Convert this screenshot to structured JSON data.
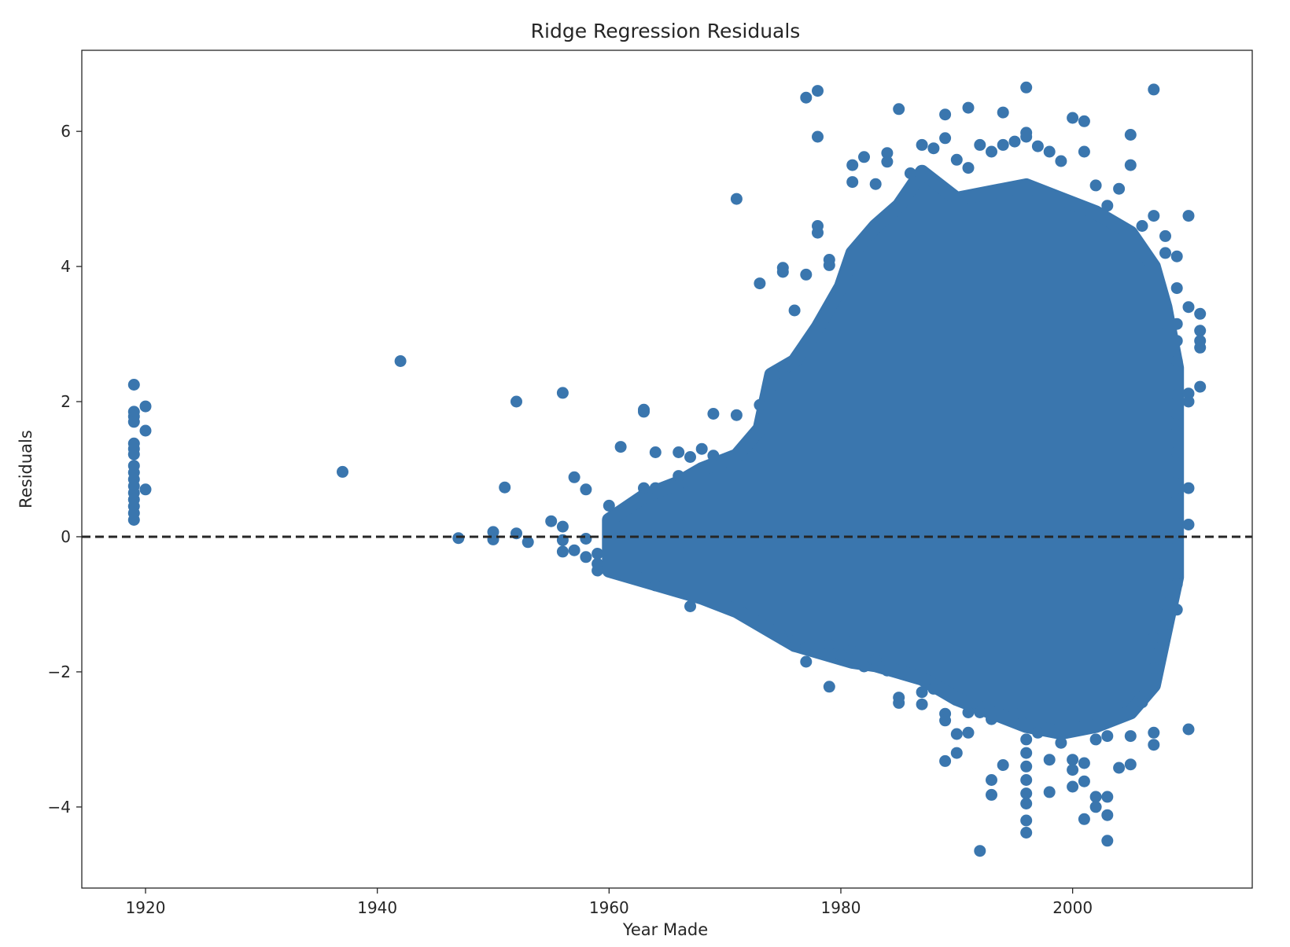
{
  "chart_data": {
    "type": "scatter",
    "title": "Ridge Regression Residuals",
    "xlabel": "Year Made",
    "ylabel": "Residuals",
    "xlim": [
      1914.5,
      2015.5
    ],
    "ylim": [
      -5.2,
      7.2
    ],
    "x_ticks": [
      1920,
      1940,
      1960,
      1980,
      2000
    ],
    "y_ticks": [
      -4,
      -2,
      0,
      2,
      4,
      6
    ],
    "grid": false,
    "legend": "none",
    "marker_color": "#3a76ae",
    "reference_line": {
      "y": 0,
      "style": "dashed",
      "color": "#262626"
    },
    "dense_envelope": [
      {
        "x": 1960,
        "top": 0.25,
        "bottom": -0.5
      },
      {
        "x": 1963,
        "top": 0.6,
        "bottom": -0.65
      },
      {
        "x": 1966,
        "top": 0.8,
        "bottom": -0.8
      },
      {
        "x": 1968,
        "top": 1.0,
        "bottom": -0.9
      },
      {
        "x": 1971,
        "top": 1.2,
        "bottom": -1.1
      },
      {
        "x": 1973,
        "top": 1.6,
        "bottom": -1.3
      },
      {
        "x": 1974,
        "top": 2.4,
        "bottom": -1.4
      },
      {
        "x": 1976,
        "top": 2.6,
        "bottom": -1.6
      },
      {
        "x": 1978,
        "top": 3.1,
        "bottom": -1.7
      },
      {
        "x": 1980,
        "top": 3.7,
        "bottom": -1.8
      },
      {
        "x": 1981,
        "top": 4.2,
        "bottom": -1.85
      },
      {
        "x": 1983,
        "top": 4.6,
        "bottom": -1.9
      },
      {
        "x": 1985,
        "top": 4.9,
        "bottom": -2.0
      },
      {
        "x": 1987,
        "top": 5.4,
        "bottom": -2.1
      },
      {
        "x": 1990,
        "top": 5.0,
        "bottom": -2.4
      },
      {
        "x": 1993,
        "top": 5.1,
        "bottom": -2.6
      },
      {
        "x": 1996,
        "top": 5.2,
        "bottom": -2.8
      },
      {
        "x": 1999,
        "top": 5.0,
        "bottom": -2.9
      },
      {
        "x": 2002,
        "top": 4.8,
        "bottom": -2.8
      },
      {
        "x": 2005,
        "top": 4.5,
        "bottom": -2.6
      },
      {
        "x": 2007,
        "top": 4.0,
        "bottom": -2.2
      },
      {
        "x": 2008,
        "top": 3.4,
        "bottom": -1.4
      },
      {
        "x": 2009,
        "top": 2.5,
        "bottom": -0.6
      }
    ],
    "points": [
      {
        "x": 1919,
        "y": 2.25
      },
      {
        "x": 1919,
        "y": 1.85
      },
      {
        "x": 1919,
        "y": 1.78
      },
      {
        "x": 1919,
        "y": 1.7
      },
      {
        "x": 1919,
        "y": 1.38
      },
      {
        "x": 1919,
        "y": 1.3
      },
      {
        "x": 1919,
        "y": 1.22
      },
      {
        "x": 1919,
        "y": 1.05
      },
      {
        "x": 1919,
        "y": 0.95
      },
      {
        "x": 1919,
        "y": 0.85
      },
      {
        "x": 1919,
        "y": 0.75
      },
      {
        "x": 1919,
        "y": 0.65
      },
      {
        "x": 1919,
        "y": 0.55
      },
      {
        "x": 1919,
        "y": 0.45
      },
      {
        "x": 1919,
        "y": 0.35
      },
      {
        "x": 1919,
        "y": 0.25
      },
      {
        "x": 1920,
        "y": 1.93
      },
      {
        "x": 1920,
        "y": 1.57
      },
      {
        "x": 1920,
        "y": 0.7
      },
      {
        "x": 1937,
        "y": 0.96
      },
      {
        "x": 1942,
        "y": 2.6
      },
      {
        "x": 1947,
        "y": -0.02
      },
      {
        "x": 1950,
        "y": 0.07
      },
      {
        "x": 1950,
        "y": -0.04
      },
      {
        "x": 1951,
        "y": 0.73
      },
      {
        "x": 1952,
        "y": 2.0
      },
      {
        "x": 1952,
        "y": 0.05
      },
      {
        "x": 1953,
        "y": -0.08
      },
      {
        "x": 1955,
        "y": 0.23
      },
      {
        "x": 1956,
        "y": 2.13
      },
      {
        "x": 1956,
        "y": 0.15
      },
      {
        "x": 1956,
        "y": -0.05
      },
      {
        "x": 1956,
        "y": -0.22
      },
      {
        "x": 1957,
        "y": 0.88
      },
      {
        "x": 1957,
        "y": -0.2
      },
      {
        "x": 1958,
        "y": 0.7
      },
      {
        "x": 1958,
        "y": -0.03
      },
      {
        "x": 1958,
        "y": -0.3
      },
      {
        "x": 1959,
        "y": -0.25
      },
      {
        "x": 1959,
        "y": -0.4
      },
      {
        "x": 1959,
        "y": -0.5
      },
      {
        "x": 1960,
        "y": 0.46
      },
      {
        "x": 1961,
        "y": 1.33
      },
      {
        "x": 1963,
        "y": 1.85
      },
      {
        "x": 1963,
        "y": 1.88
      },
      {
        "x": 1963,
        "y": 0.72
      },
      {
        "x": 1964,
        "y": 1.25
      },
      {
        "x": 1964,
        "y": 0.72
      },
      {
        "x": 1964,
        "y": -0.72
      },
      {
        "x": 1966,
        "y": 1.25
      },
      {
        "x": 1966,
        "y": 0.9
      },
      {
        "x": 1967,
        "y": 1.18
      },
      {
        "x": 1967,
        "y": -1.03
      },
      {
        "x": 1968,
        "y": 1.3
      },
      {
        "x": 1969,
        "y": 1.82
      },
      {
        "x": 1969,
        "y": 1.2
      },
      {
        "x": 1971,
        "y": 5.0
      },
      {
        "x": 1971,
        "y": 1.8
      },
      {
        "x": 1973,
        "y": 3.75
      },
      {
        "x": 1973,
        "y": 1.95
      },
      {
        "x": 1975,
        "y": 3.98
      },
      {
        "x": 1975,
        "y": 3.92
      },
      {
        "x": 1975,
        "y": 2.5
      },
      {
        "x": 1975,
        "y": -1.52
      },
      {
        "x": 1976,
        "y": 3.35
      },
      {
        "x": 1976,
        "y": -1.62
      },
      {
        "x": 1977,
        "y": 6.5
      },
      {
        "x": 1977,
        "y": 3.88
      },
      {
        "x": 1977,
        "y": -1.85
      },
      {
        "x": 1977,
        "y": -1.65
      },
      {
        "x": 1978,
        "y": 6.6
      },
      {
        "x": 1978,
        "y": 5.92
      },
      {
        "x": 1978,
        "y": 4.6
      },
      {
        "x": 1978,
        "y": 4.5
      },
      {
        "x": 1979,
        "y": 4.1
      },
      {
        "x": 1979,
        "y": 4.02
      },
      {
        "x": 1979,
        "y": -1.6
      },
      {
        "x": 1979,
        "y": -2.22
      },
      {
        "x": 1980,
        "y": -1.75
      },
      {
        "x": 1981,
        "y": 5.5
      },
      {
        "x": 1981,
        "y": 5.25
      },
      {
        "x": 1981,
        "y": -1.55
      },
      {
        "x": 1982,
        "y": 5.62
      },
      {
        "x": 1982,
        "y": -1.92
      },
      {
        "x": 1983,
        "y": 5.22
      },
      {
        "x": 1983,
        "y": -1.82
      },
      {
        "x": 1984,
        "y": 5.68
      },
      {
        "x": 1984,
        "y": 5.55
      },
      {
        "x": 1984,
        "y": -1.98
      },
      {
        "x": 1985,
        "y": 6.33
      },
      {
        "x": 1985,
        "y": -2.38
      },
      {
        "x": 1985,
        "y": -2.46
      },
      {
        "x": 1986,
        "y": 5.38
      },
      {
        "x": 1987,
        "y": 5.8
      },
      {
        "x": 1987,
        "y": -2.48
      },
      {
        "x": 1987,
        "y": -2.3
      },
      {
        "x": 1988,
        "y": 5.75
      },
      {
        "x": 1988,
        "y": -2.25
      },
      {
        "x": 1989,
        "y": 6.25
      },
      {
        "x": 1989,
        "y": 5.9
      },
      {
        "x": 1989,
        "y": -2.62
      },
      {
        "x": 1989,
        "y": -2.72
      },
      {
        "x": 1989,
        "y": -3.32
      },
      {
        "x": 1990,
        "y": 5.58
      },
      {
        "x": 1990,
        "y": -2.92
      },
      {
        "x": 1990,
        "y": -3.2
      },
      {
        "x": 1991,
        "y": 6.35
      },
      {
        "x": 1991,
        "y": 5.46
      },
      {
        "x": 1991,
        "y": -2.9
      },
      {
        "x": 1991,
        "y": -2.6
      },
      {
        "x": 1992,
        "y": 5.8
      },
      {
        "x": 1992,
        "y": -2.6
      },
      {
        "x": 1992,
        "y": -4.65
      },
      {
        "x": 1993,
        "y": 5.7
      },
      {
        "x": 1993,
        "y": -2.7
      },
      {
        "x": 1993,
        "y": -3.6
      },
      {
        "x": 1993,
        "y": -3.82
      },
      {
        "x": 1994,
        "y": 6.28
      },
      {
        "x": 1994,
        "y": 5.8
      },
      {
        "x": 1994,
        "y": -3.38
      },
      {
        "x": 1995,
        "y": 5.85
      },
      {
        "x": 1995,
        "y": -2.62
      },
      {
        "x": 1996,
        "y": 6.65
      },
      {
        "x": 1996,
        "y": 5.98
      },
      {
        "x": 1996,
        "y": 5.92
      },
      {
        "x": 1996,
        "y": -3.0
      },
      {
        "x": 1996,
        "y": -3.2
      },
      {
        "x": 1996,
        "y": -3.4
      },
      {
        "x": 1996,
        "y": -3.6
      },
      {
        "x": 1996,
        "y": -3.8
      },
      {
        "x": 1996,
        "y": -3.95
      },
      {
        "x": 1996,
        "y": -4.2
      },
      {
        "x": 1996,
        "y": -4.38
      },
      {
        "x": 1997,
        "y": 5.78
      },
      {
        "x": 1997,
        "y": -2.9
      },
      {
        "x": 1998,
        "y": 5.7
      },
      {
        "x": 1998,
        "y": -3.78
      },
      {
        "x": 1998,
        "y": -3.3
      },
      {
        "x": 1999,
        "y": 5.56
      },
      {
        "x": 1999,
        "y": -3.05
      },
      {
        "x": 2000,
        "y": 6.2
      },
      {
        "x": 2000,
        "y": -3.3
      },
      {
        "x": 2000,
        "y": -3.45
      },
      {
        "x": 2000,
        "y": -3.7
      },
      {
        "x": 2001,
        "y": 6.15
      },
      {
        "x": 2001,
        "y": 5.7
      },
      {
        "x": 2001,
        "y": -3.35
      },
      {
        "x": 2001,
        "y": -3.62
      },
      {
        "x": 2001,
        "y": -4.18
      },
      {
        "x": 2002,
        "y": 5.2
      },
      {
        "x": 2002,
        "y": -3.0
      },
      {
        "x": 2002,
        "y": -3.85
      },
      {
        "x": 2002,
        "y": -4.0
      },
      {
        "x": 2003,
        "y": 4.9
      },
      {
        "x": 2003,
        "y": -3.85
      },
      {
        "x": 2003,
        "y": -4.12
      },
      {
        "x": 2003,
        "y": -4.5
      },
      {
        "x": 2003,
        "y": -2.95
      },
      {
        "x": 2004,
        "y": 5.15
      },
      {
        "x": 2004,
        "y": -3.42
      },
      {
        "x": 2005,
        "y": 5.95
      },
      {
        "x": 2005,
        "y": 5.5
      },
      {
        "x": 2005,
        "y": -3.37
      },
      {
        "x": 2005,
        "y": -2.95
      },
      {
        "x": 2006,
        "y": 4.6
      },
      {
        "x": 2006,
        "y": -2.45
      },
      {
        "x": 2007,
        "y": 6.62
      },
      {
        "x": 2007,
        "y": 4.75
      },
      {
        "x": 2007,
        "y": -2.9
      },
      {
        "x": 2007,
        "y": -3.08
      },
      {
        "x": 2007,
        "y": -1.95
      },
      {
        "x": 2007,
        "y": -1.5
      },
      {
        "x": 2008,
        "y": 4.45
      },
      {
        "x": 2008,
        "y": 4.2
      },
      {
        "x": 2008,
        "y": -1.3
      },
      {
        "x": 2008,
        "y": -1.0
      },
      {
        "x": 2009,
        "y": 4.15
      },
      {
        "x": 2009,
        "y": 3.68
      },
      {
        "x": 2009,
        "y": 3.15
      },
      {
        "x": 2009,
        "y": 2.9
      },
      {
        "x": 2009,
        "y": 2.6
      },
      {
        "x": 2009,
        "y": 2.1
      },
      {
        "x": 2009,
        "y": 1.82
      },
      {
        "x": 2009,
        "y": 1.55
      },
      {
        "x": 2009,
        "y": 1.25
      },
      {
        "x": 2009,
        "y": 0.95
      },
      {
        "x": 2009,
        "y": 0.55
      },
      {
        "x": 2009,
        "y": 0.2
      },
      {
        "x": 2009,
        "y": -0.15
      },
      {
        "x": 2009,
        "y": -0.55
      },
      {
        "x": 2009,
        "y": -0.7
      },
      {
        "x": 2009,
        "y": -1.08
      },
      {
        "x": 2010,
        "y": 4.75
      },
      {
        "x": 2010,
        "y": 3.4
      },
      {
        "x": 2010,
        "y": 2.12
      },
      {
        "x": 2010,
        "y": 2.0
      },
      {
        "x": 2010,
        "y": 0.72
      },
      {
        "x": 2010,
        "y": 0.18
      },
      {
        "x": 2010,
        "y": -2.85
      },
      {
        "x": 2011,
        "y": 3.3
      },
      {
        "x": 2011,
        "y": 3.05
      },
      {
        "x": 2011,
        "y": 2.9
      },
      {
        "x": 2011,
        "y": 2.8
      },
      {
        "x": 2011,
        "y": 2.22
      }
    ]
  }
}
